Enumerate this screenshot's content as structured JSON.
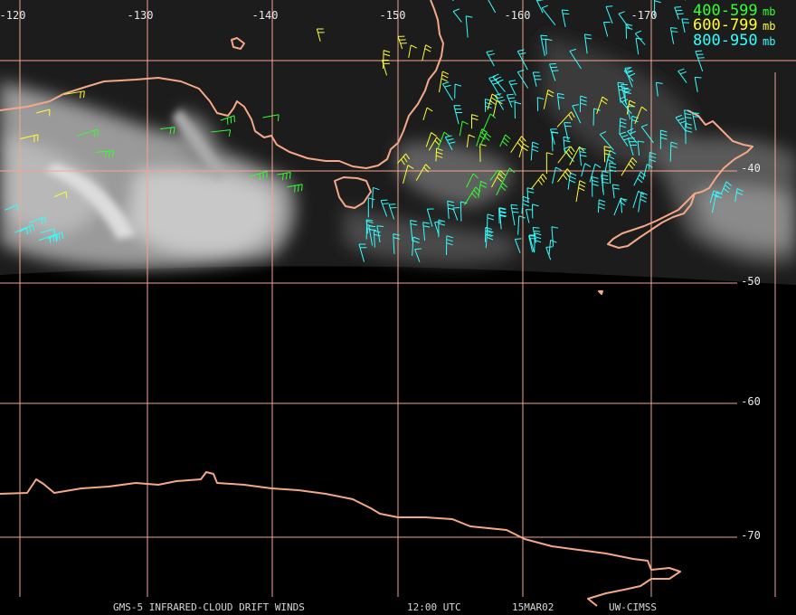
{
  "map": {
    "longitude_labels": [
      "-120",
      "-130",
      "-140",
      "-150",
      "-160",
      "-170"
    ],
    "latitude_labels": [
      "-40",
      "-50",
      "-60",
      "-70"
    ],
    "legend": [
      {
        "range": "400-599",
        "unit": "mb"
      },
      {
        "range": "600-799",
        "unit": "mb"
      },
      {
        "range": "800-950",
        "unit": "mb"
      }
    ],
    "footer": {
      "product": "GMS-5 INFRARED-CLOUD DRIFT WINDS",
      "time": "12:00 UTC",
      "date": "15MAR02",
      "source": "UW-CIMSS"
    }
  }
}
